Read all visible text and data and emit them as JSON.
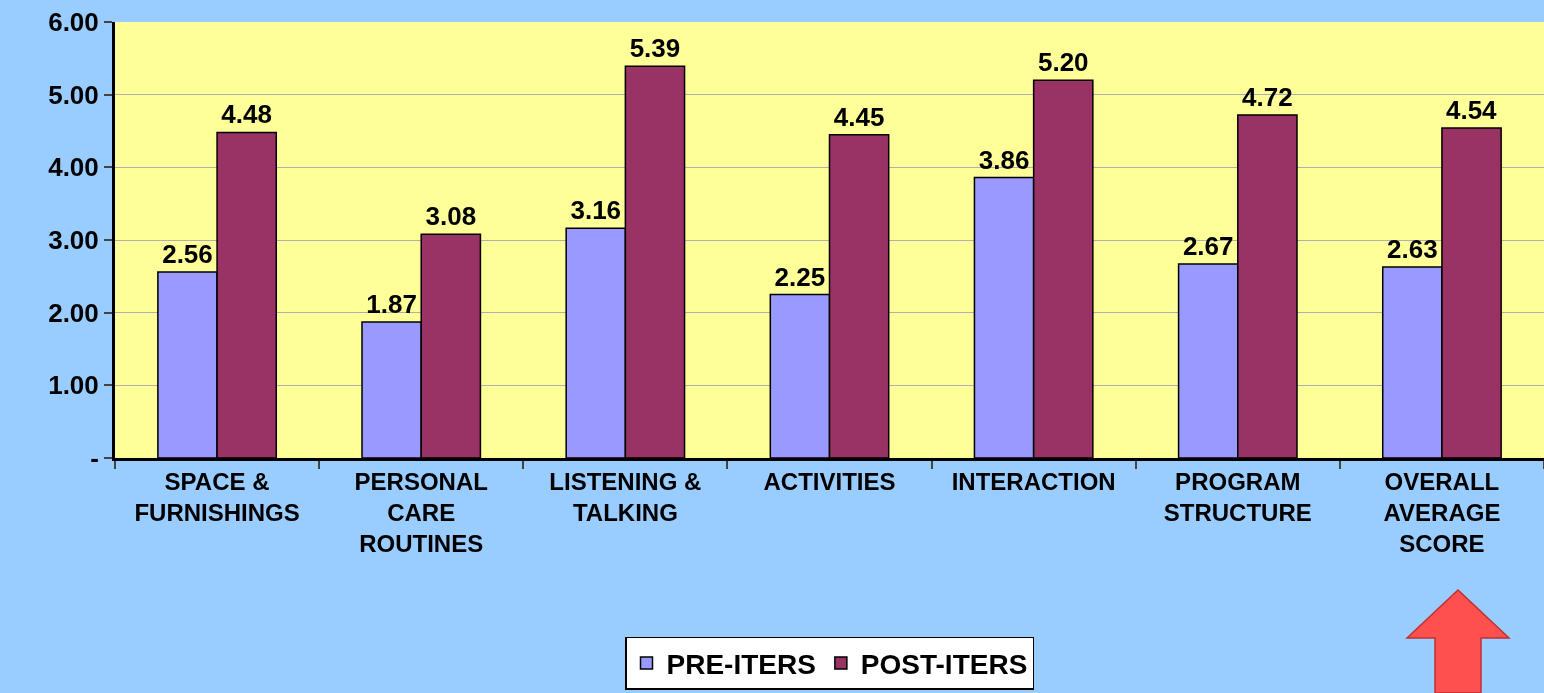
{
  "chart_data": {
    "type": "bar",
    "categories": [
      "SPACE &\nFURNISHINGS",
      "PERSONAL\nCARE\nROUTINES",
      "LISTENING &\nTALKING",
      "ACTIVITIES",
      "INTERACTION",
      "PROGRAM\nSTRUCTURE",
      "OVERALL\nAVERAGE\nSCORE"
    ],
    "series": [
      {
        "name": "PRE-ITERS",
        "color": "#9999ff",
        "values": [
          2.56,
          1.87,
          3.16,
          2.25,
          3.86,
          2.67,
          2.63
        ],
        "value_labels": [
          "2.56",
          "1.87",
          "3.16",
          "2.25",
          "3.86",
          "2.67",
          "2.63"
        ]
      },
      {
        "name": "POST-ITERS",
        "color": "#993366",
        "values": [
          4.48,
          3.08,
          5.39,
          4.45,
          5.2,
          4.72,
          4.54
        ],
        "value_labels": [
          "4.48",
          "3.08",
          "5.39",
          "4.45",
          "5.20",
          "4.72",
          "4.54"
        ]
      }
    ],
    "ylim": [
      0,
      6
    ],
    "yticks": [
      {
        "value": 0,
        "label": "-"
      },
      {
        "value": 1,
        "label": "1.00"
      },
      {
        "value": 2,
        "label": "2.00"
      },
      {
        "value": 3,
        "label": "3.00"
      },
      {
        "value": 4,
        "label": "4.00"
      },
      {
        "value": 5,
        "label": "5.00"
      },
      {
        "value": 6,
        "label": "6.00"
      }
    ],
    "grid": "y",
    "legend": "bottom"
  }
}
